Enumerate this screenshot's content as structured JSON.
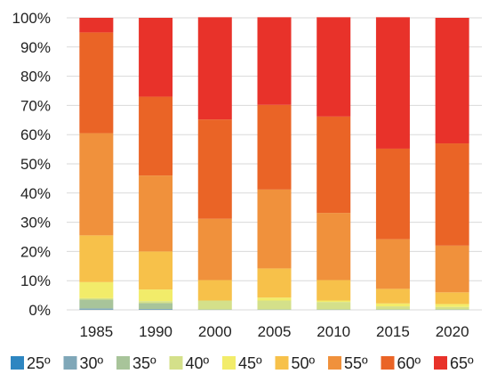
{
  "chart_data": {
    "type": "bar",
    "stacked": true,
    "normalized": true,
    "categories": [
      "1985",
      "1990",
      "2000",
      "2005",
      "2010",
      "2015",
      "2020"
    ],
    "y_ticks": [
      "0%",
      "10%",
      "20%",
      "30%",
      "40%",
      "50%",
      "60%",
      "70%",
      "80%",
      "90%",
      "100%"
    ],
    "ylim": [
      0,
      100
    ],
    "grid": true,
    "legend_position": "bottom",
    "series": [
      {
        "name": "25º",
        "color": "#2e86c1",
        "values": [
          0.0,
          0.0,
          0.0,
          0.0,
          0.0,
          0.0,
          0.0
        ]
      },
      {
        "name": "30º",
        "color": "#7fa7b8",
        "values": [
          0.5,
          0.3,
          0.0,
          0.0,
          0.0,
          0.0,
          0.0
        ]
      },
      {
        "name": "35º",
        "color": "#a8c49a",
        "values": [
          3.0,
          2.0,
          0.2,
          0.2,
          0.2,
          0.2,
          0.2
        ]
      },
      {
        "name": "40º",
        "color": "#d4e08a",
        "values": [
          0.5,
          0.7,
          3.0,
          3.0,
          2.5,
          1.0,
          0.8
        ]
      },
      {
        "name": "45º",
        "color": "#f2ec6a",
        "values": [
          5.5,
          4.0,
          0.0,
          1.0,
          0.5,
          1.0,
          1.0
        ]
      },
      {
        "name": "50º",
        "color": "#f7c14a",
        "values": [
          16.0,
          13.0,
          7.0,
          10.0,
          7.0,
          5.0,
          4.0
        ]
      },
      {
        "name": "55º",
        "color": "#f0913c",
        "values": [
          35.0,
          26.0,
          21.0,
          27.0,
          23.0,
          17.0,
          16.0
        ]
      },
      {
        "name": "60º",
        "color": "#ea6426",
        "values": [
          34.5,
          27.0,
          34.0,
          29.0,
          33.0,
          31.0,
          35.0
        ]
      },
      {
        "name": "65º",
        "color": "#e8322a",
        "values": [
          5.0,
          27.0,
          35.0,
          30.0,
          34.0,
          45.0,
          43.0
        ]
      }
    ]
  }
}
